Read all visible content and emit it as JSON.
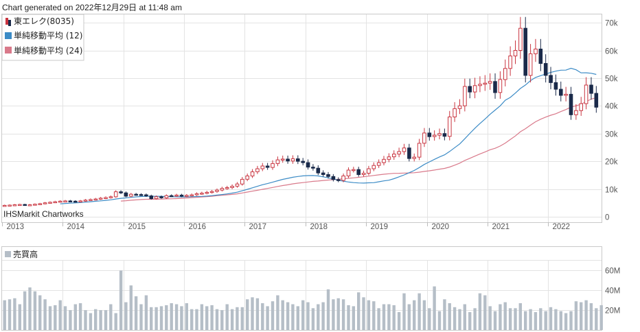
{
  "generated_text": "Chart generated on 2022年12月29日 at 11:48 am",
  "credit": "IHSMarkit Chartworks",
  "colors": {
    "up": "#c9343f",
    "down": "#1a2a4a",
    "ma12": "#3b8bc6",
    "ma24": "#d9798a",
    "volume": "#b5bec7",
    "grid": "#e3e3e3",
    "frame": "#c9c9c9"
  },
  "chart_data": [
    {
      "type": "candlestick",
      "legend": [
        {
          "label": "東エレク(8035)",
          "icon": "candle-icon"
        },
        {
          "label": "単純移動平均 (12)",
          "color": "#3b8bc6"
        },
        {
          "label": "単純移動平均 (24)",
          "color": "#d9798a"
        }
      ],
      "x_labels": [
        "2013",
        "2014",
        "2015",
        "2016",
        "2017",
        "2018",
        "2019",
        "2020",
        "2021",
        "2022"
      ],
      "y_ticks": [
        0,
        10000,
        20000,
        30000,
        40000,
        50000,
        60000,
        70000
      ],
      "y_tick_labels": [
        "0",
        "10k",
        "20k",
        "30k",
        "40k",
        "50k",
        "60k",
        "70k"
      ],
      "ylim": [
        -2000,
        73000
      ],
      "start": "2013-01",
      "close": [
        4100,
        4200,
        4300,
        4400,
        4200,
        4300,
        4500,
        4700,
        5000,
        5200,
        5400,
        5600,
        5700,
        5600,
        5500,
        5700,
        6000,
        6200,
        6400,
        6700,
        6900,
        7200,
        9000,
        8600,
        7400,
        8100,
        8000,
        7900,
        7500,
        6500,
        7200,
        6800,
        7600,
        7500,
        7800,
        7400,
        7700,
        7900,
        8300,
        8500,
        8800,
        9100,
        9600,
        10200,
        10500,
        11000,
        11800,
        13500,
        14700,
        16200,
        17300,
        18300,
        17800,
        19200,
        20500,
        20800,
        20100,
        20900,
        20000,
        19500,
        17900,
        17500,
        15800,
        15200,
        14500,
        13400,
        13100,
        14700,
        16800,
        17000,
        15200,
        15700,
        17300,
        18500,
        19500,
        20700,
        21600,
        22600,
        23500,
        24800,
        21000,
        21500,
        26500,
        30200,
        28900,
        29400,
        30000,
        29000,
        36000,
        39000,
        40000,
        47000,
        45000,
        47300,
        47800,
        48200,
        48800,
        44800,
        49500,
        53500,
        58000,
        60000,
        68000,
        51000,
        58800,
        60500,
        55300,
        51000,
        48400,
        46000,
        43800,
        44200,
        36800,
        38300,
        40800,
        47500,
        44500,
        39500
      ],
      "ma12": [
        null,
        null,
        null,
        null,
        null,
        null,
        null,
        null,
        null,
        null,
        null,
        4642,
        4775,
        4892,
        4992,
        5100,
        5250,
        5408,
        5567,
        5733,
        5908,
        6092,
        6383,
        6633,
        6775,
        6983,
        7150,
        7292,
        7383,
        7367,
        7392,
        7358,
        7292,
        7200,
        7192,
        7167,
        7158,
        7208,
        7275,
        7325,
        7433,
        7608,
        7808,
        8008,
        8233,
        8525,
        8850,
        9358,
        9892,
        10417,
        10958,
        11533,
        11950,
        12458,
        12975,
        13467,
        13842,
        14233,
        14517,
        14725,
        14825,
        14850,
        14717,
        14383,
        14050,
        13625,
        13175,
        12800,
        12542,
        12317,
        12192,
        12125,
        12233,
        12283,
        12592,
        12917,
        13175,
        13717,
        14392,
        15067,
        15875,
        16692,
        17717,
        18867,
        19783,
        20700,
        21567,
        22333,
        23533,
        24900,
        26275,
        28125,
        30050,
        31925,
        33608,
        35233,
        36967,
        38458,
        40008,
        42033,
        43050,
        44608,
        46283,
        47533,
        49125,
        50258,
        50892,
        51483,
        52067,
        52525,
        52883,
        52900,
        53558,
        53017,
        51917,
        51942,
        51758,
        51350
      ],
      "ma24": [
        null,
        null,
        null,
        null,
        null,
        null,
        null,
        null,
        null,
        null,
        null,
        null,
        null,
        null,
        null,
        null,
        null,
        null,
        null,
        null,
        null,
        null,
        null,
        5638,
        5775,
        5937,
        6071,
        6196,
        6288,
        6283,
        6321,
        6333,
        6429,
        6467,
        6550,
        6629,
        6729,
        6858,
        6992,
        7104,
        7233,
        7379,
        7569,
        7733,
        7904,
        8058,
        8254,
        8563,
        8900,
        9225,
        9542,
        9892,
        10192,
        10546,
        10915,
        11235,
        11527,
        11850,
        12106,
        12304,
        12533,
        12746,
        12883,
        13062,
        13233,
        13371,
        13512,
        13683,
        13865,
        14027,
        14208,
        14400,
        14635,
        14888,
        15104,
        15317,
        15500,
        15637,
        15671,
        15746,
        15787,
        15875,
        16077,
        16346,
        16565,
        16838,
        17148,
        17422,
        17927,
        18596,
        19333,
        20296,
        21081,
        21859,
        22642,
        23350,
        24173,
        24683,
        25496,
        26554,
        27840,
        29131,
        30671,
        31760,
        33050,
        34267,
        35167,
        35942,
        36610,
        37158,
        37958,
        38675,
        39558,
        40021,
        40575,
        41575,
        42429,
        42981
      ],
      "volume_series": {
        "legend_label": "売買高",
        "y_tick_labels": [
          "20M",
          "40M",
          "60M"
        ],
        "y_ticks": [
          20000000,
          40000000,
          60000000
        ],
        "ylim": [
          0,
          70000000
        ],
        "values": [
          30,
          31,
          32,
          26,
          39,
          43,
          39,
          35,
          31,
          24,
          25,
          30,
          24,
          20,
          26,
          27,
          20,
          17,
          21,
          20,
          20,
          26,
          17,
          60,
          28,
          45,
          34,
          26,
          35,
          23,
          23,
          24,
          25,
          27,
          26,
          24,
          27,
          21,
          21,
          26,
          24,
          25,
          21,
          20,
          26,
          21,
          23,
          23,
          31,
          33,
          32,
          27,
          24,
          29,
          35,
          30,
          28,
          26,
          24,
          30,
          28,
          22,
          26,
          28,
          41,
          31,
          32,
          31,
          25,
          24,
          38,
          33,
          30,
          29,
          22,
          26,
          26,
          25,
          18,
          37,
          26,
          30,
          37,
          30,
          22,
          44,
          19,
          31,
          27,
          23,
          21,
          26,
          18,
          22,
          37,
          35,
          24,
          19,
          26,
          28,
          22,
          22,
          27,
          19,
          21,
          18,
          22,
          19,
          23,
          21,
          19,
          17,
          19,
          29,
          28,
          30,
          27,
          22,
          25
        ]
      }
    }
  ]
}
